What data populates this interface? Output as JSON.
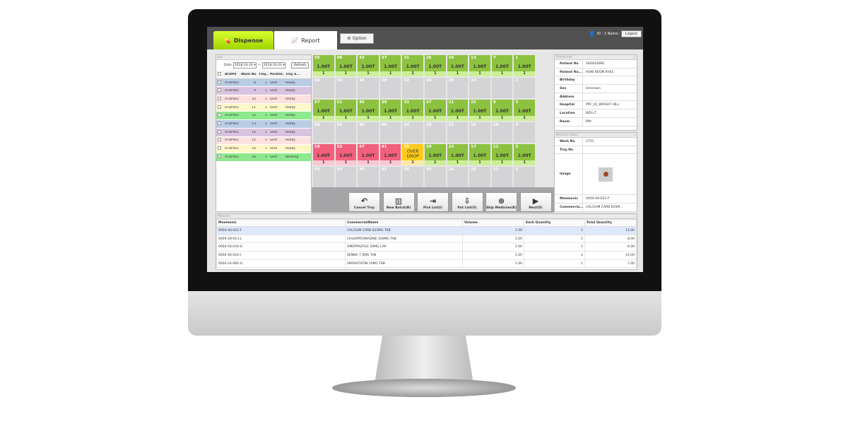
{
  "header": {
    "tabs": [
      {
        "label": "Dispense",
        "icon": "pill-icon",
        "active": true
      },
      {
        "label": "Report",
        "icon": "chart-icon"
      }
    ],
    "option_label": "Option",
    "user_text": "ID : 1  Name :",
    "logout_label": "Logout"
  },
  "job": {
    "title": "Job",
    "date_label": "Date",
    "date_from": "2018-10-24",
    "date_to": "2018-10-24",
    "refresh_label": "Refresh",
    "columns": [
      "ATDPS",
      "Work No",
      "Tray...",
      "PackOr...",
      "Tray S..."
    ],
    "rows": [
      {
        "atdps": "ATDPS01",
        "work_no": "8",
        "tray": "1",
        "pack": "Sent",
        "status": "Ready",
        "color": "#b8cce4",
        "checked": false
      },
      {
        "atdps": "ATDPS01",
        "work_no": "9",
        "tray": "1",
        "pack": "Sent",
        "status": "Ready",
        "color": "#d9c3e0",
        "checked": false
      },
      {
        "atdps": "ATDPS01",
        "work_no": "10",
        "tray": "1",
        "pack": "Sent",
        "status": "Ready",
        "color": "#fde0e0",
        "checked": false
      },
      {
        "atdps": "ATDPS01",
        "work_no": "11",
        "tray": "1",
        "pack": "Sent",
        "status": "Ready",
        "color": "#fff7c8",
        "checked": false
      },
      {
        "atdps": "ATDPS01",
        "work_no": "12",
        "tray": "1",
        "pack": "Sent",
        "status": "Ready",
        "color": "#8ee88e",
        "checked": false
      },
      {
        "atdps": "ATDPS01",
        "work_no": "13",
        "tray": "1",
        "pack": "Sent",
        "status": "Ready",
        "color": "#b8cce4",
        "checked": false
      },
      {
        "atdps": "ATDPS01",
        "work_no": "14",
        "tray": "1",
        "pack": "Sent",
        "status": "Ready",
        "color": "#d9c3e0",
        "checked": false
      },
      {
        "atdps": "ATDPS01",
        "work_no": "15",
        "tray": "1",
        "pack": "Sent",
        "status": "Ready",
        "color": "#fde0e0",
        "checked": false
      },
      {
        "atdps": "ATDPS01",
        "work_no": "16",
        "tray": "1",
        "pack": "Sent",
        "status": "Ready",
        "color": "#fff7c8",
        "checked": false
      },
      {
        "atdps": "ATDPS01",
        "work_no": "18",
        "tray": "1",
        "pack": "Sent",
        "status": "Working",
        "color": "#8ee88e",
        "checked": true
      }
    ]
  },
  "tray_grid": [
    [
      {
        "n": "55",
        "q": "1.00T",
        "k": "1",
        "s": "g"
      },
      {
        "n": "49",
        "q": "1.00T",
        "k": "1",
        "s": "g"
      },
      {
        "n": "43",
        "q": "1.00T",
        "k": "1",
        "s": "g"
      },
      {
        "n": "37",
        "q": "1.00T",
        "k": "1",
        "s": "g"
      },
      {
        "n": "31",
        "q": "1.00T",
        "k": "1",
        "s": "g"
      },
      {
        "n": "25",
        "q": "1.00T",
        "k": "1",
        "s": "g"
      },
      {
        "n": "19",
        "q": "1.00T",
        "k": "1",
        "s": "g"
      },
      {
        "n": "13",
        "q": "1.00T",
        "k": "1",
        "s": "g"
      },
      {
        "n": "7",
        "q": "1.00T",
        "k": "1",
        "s": "g"
      },
      {
        "n": "1",
        "q": "1.00T",
        "k": "1",
        "s": "g"
      }
    ],
    [
      {
        "n": "56"
      },
      {
        "n": "50"
      },
      {
        "n": "44"
      },
      {
        "n": "38"
      },
      {
        "n": "32"
      },
      {
        "n": "26"
      },
      {
        "n": "20"
      },
      {
        "n": "14"
      },
      {
        "n": ""
      },
      {
        "n": "2"
      }
    ],
    [
      {
        "n": "57",
        "q": "1.00T",
        "k": "1",
        "s": "g"
      },
      {
        "n": "51",
        "q": "1.00T",
        "k": "1",
        "s": "g"
      },
      {
        "n": "45",
        "q": "1.00T",
        "k": "1",
        "s": "g"
      },
      {
        "n": "39",
        "q": "1.00T",
        "k": "1",
        "s": "g"
      },
      {
        "n": "33",
        "q": "1.00T",
        "k": "1",
        "s": "g"
      },
      {
        "n": "27",
        "q": "1.00T",
        "k": "1",
        "s": "g"
      },
      {
        "n": "21",
        "q": "1.00T",
        "k": "1",
        "s": "g"
      },
      {
        "n": "15",
        "q": "1.00T",
        "k": "1",
        "s": "g"
      },
      {
        "n": "9",
        "q": "1.00T",
        "k": "1",
        "s": "g"
      },
      {
        "n": "3",
        "q": "1.00T",
        "k": "1",
        "s": "g"
      }
    ],
    [
      {
        "n": "58"
      },
      {
        "n": "52"
      },
      {
        "n": "46"
      },
      {
        "n": "40"
      },
      {
        "n": "34"
      },
      {
        "n": "28"
      },
      {
        "n": "22"
      },
      {
        "n": "16"
      },
      {
        "n": "10"
      },
      {
        "n": "4"
      }
    ],
    [
      {
        "n": "59",
        "q": "1.00T",
        "k": "1",
        "s": "r"
      },
      {
        "n": "53",
        "q": "1.00T",
        "k": "1",
        "s": "r"
      },
      {
        "n": "47",
        "q": "1.00T",
        "k": "1",
        "s": "r"
      },
      {
        "n": "41",
        "q": "1.00T",
        "k": "1",
        "s": "r"
      },
      {
        "n": "35",
        "q": "OVER DROP",
        "k": "2",
        "s": "y"
      },
      {
        "n": "29",
        "q": "1.00T",
        "k": "1",
        "s": "g"
      },
      {
        "n": "23",
        "q": "1.00T",
        "k": "1",
        "s": "g"
      },
      {
        "n": "17",
        "q": "1.00T",
        "k": "1",
        "s": "g"
      },
      {
        "n": "11",
        "q": "1.00T",
        "k": "1",
        "s": "g"
      },
      {
        "n": "5",
        "q": "1.00T",
        "k": "1",
        "s": "g"
      }
    ],
    [
      {
        "n": "60"
      },
      {
        "n": "54"
      },
      {
        "n": "48"
      },
      {
        "n": "42"
      },
      {
        "n": "36"
      },
      {
        "n": "30"
      },
      {
        "n": "24"
      },
      {
        "n": "18"
      },
      {
        "n": "12"
      },
      {
        "n": "6"
      }
    ]
  ],
  "actions": [
    {
      "label": "Cancel Tray",
      "icon": "undo-icon",
      "glyph": "↶"
    },
    {
      "label": "New Batch(B)",
      "icon": "new-batch-icon",
      "glyph": "▥"
    },
    {
      "label": "Pick List(I)",
      "icon": "pick-list-icon",
      "glyph": "⇥"
    },
    {
      "label": "Put List(U)",
      "icon": "put-list-icon",
      "glyph": "⇩"
    },
    {
      "label": "Skip Medicine(K)",
      "icon": "skip-medicine-icon",
      "glyph": "⊗"
    },
    {
      "label": "Next(S)",
      "icon": "play-icon",
      "glyph": "▶"
    }
  ],
  "patient_info": {
    "title": "Patient Info",
    "fields": [
      {
        "label": "Patient No",
        "value": "S0044369G"
      },
      {
        "label": "Patient Na...",
        "value": "HOW BOON KVEE"
      },
      {
        "label": "Birthday",
        "value": ""
      },
      {
        "label": "Sex",
        "value": "Unknown"
      },
      {
        "label": "Address",
        "value": ""
      },
      {
        "label": "Hospital",
        "value": "PPC_01_BRIGHT HILL"
      },
      {
        "label": "Location",
        "value": "WD:L7"
      },
      {
        "label": "Room",
        "value": "RM:"
      }
    ]
  },
  "medicine_detail": {
    "title": "Medicine Detail",
    "work_no_label": "Work No",
    "work_no": "2751",
    "tray_no_label": "Tray No",
    "tray_no": "",
    "image_label": "Image",
    "mnemonic_label": "Mnemonic",
    "mnemonic": "0004-40-022-F",
    "commercial_label": "Commercia...",
    "commercial": "CALCIUM CARB 625M..."
  },
  "medicine": {
    "title": "Medicine",
    "columns": [
      "Mnemonic",
      "CommercialName",
      "Volume",
      "Each Quantity",
      "Total Quantity"
    ],
    "rows": [
      [
        "0004-40-022-F",
        "CALCIUM CARB 625MG TAB",
        "1.00",
        "1",
        "13.00"
      ],
      [
        "0004-28-013-L",
        "CHLORPROMAZINE 100MG TAB",
        "1.00",
        "1",
        "8.00"
      ],
      [
        "0004-56-034-G",
        "OMEPRAZOLE 20MG CAP",
        "1.00",
        "1",
        "6.00"
      ],
      [
        "0004-56-016-I",
        "SENNA 7.5MG TAB",
        "1.00",
        "2",
        "14.00"
      ],
      [
        "0004-24-085-G",
        "SIMVASTATIN 10MG TAB",
        "1.00",
        "1",
        "7.00"
      ]
    ]
  }
}
